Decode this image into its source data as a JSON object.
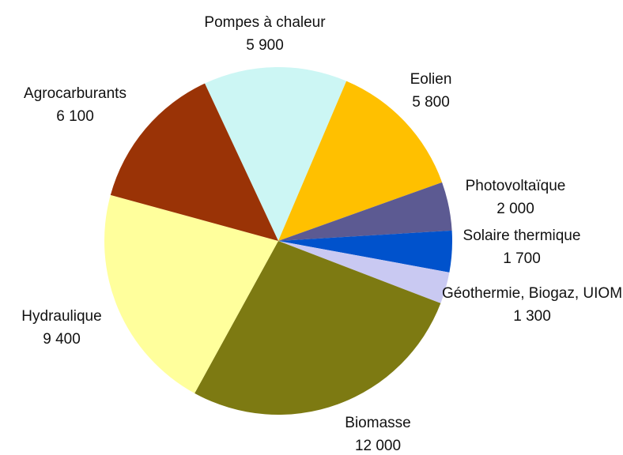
{
  "chart_data": {
    "type": "pie",
    "categories": [
      "Pompes à chaleur",
      "Eolien",
      "Photovoltaïque",
      "Solaire thermique",
      "Géothermie, Biogaz, UIOM",
      "Biomasse",
      "Hydraulique",
      "Agrocarburants"
    ],
    "values": [
      5900,
      5800,
      2000,
      1700,
      1300,
      12000,
      9400,
      6100
    ],
    "value_labels": [
      "5 900",
      "5 800",
      "2 000",
      "1 700",
      "1 300",
      "12 000",
      "9 400",
      "6 100"
    ],
    "colors": [
      "#ccf6f4",
      "#ffc000",
      "#5c5a92",
      "#0052cc",
      "#c9c9f2",
      "#7d7a12",
      "#ffff9c",
      "#9a3306"
    ]
  }
}
